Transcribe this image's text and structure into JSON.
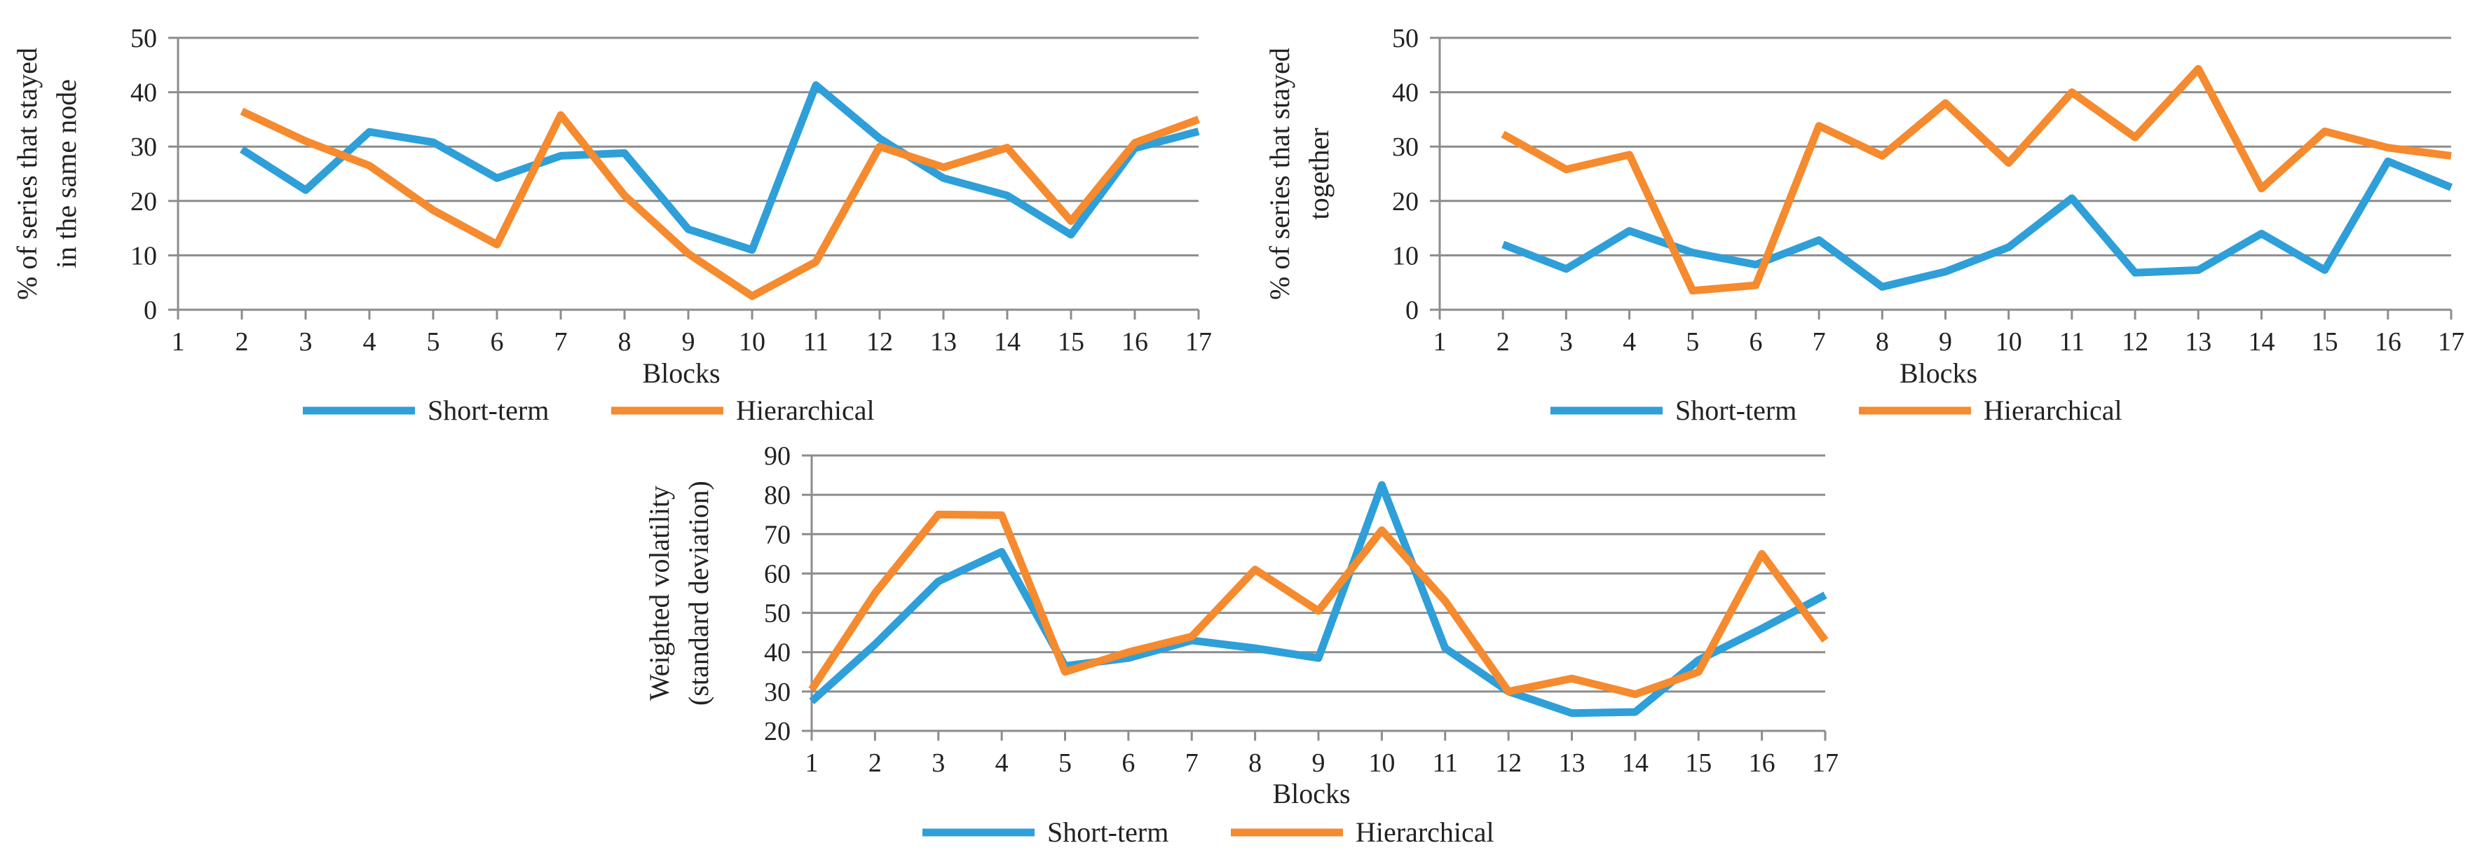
{
  "colors": {
    "short_term": "#2E9FD8",
    "hierarchical": "#F58A2E",
    "grid": "#8C8C8C",
    "axis": "#8C8C8C",
    "text": "#222222"
  },
  "chart_data": [
    {
      "type": "line",
      "id": "chart-1",
      "title": "",
      "xlabel": "Blocks",
      "ylabel": [
        "% of series that stayed",
        "in the same node"
      ],
      "x": [
        1,
        2,
        3,
        4,
        5,
        6,
        7,
        8,
        9,
        10,
        11,
        12,
        13,
        14,
        15,
        16,
        17
      ],
      "ylim": [
        0,
        50
      ],
      "yticks": [
        0,
        10,
        20,
        30,
        40,
        50
      ],
      "legend_position": "bottom",
      "series": [
        {
          "name": "Short-term",
          "x": [
            2,
            3,
            4,
            5,
            6,
            7,
            8,
            9,
            10,
            11,
            12,
            13,
            14,
            15,
            16,
            17
          ],
          "values": [
            29.5,
            22,
            32.7,
            30.8,
            24.2,
            28.3,
            28.8,
            14.8,
            11,
            41.3,
            31.5,
            24.2,
            21,
            13.8,
            29.7,
            32.8
          ]
        },
        {
          "name": "Hierarchical",
          "x": [
            2,
            3,
            4,
            5,
            6,
            7,
            8,
            9,
            10,
            11,
            12,
            13,
            14,
            15,
            16,
            17
          ],
          "values": [
            36.5,
            31,
            26.5,
            18.3,
            12,
            35.8,
            21,
            10.3,
            2.5,
            8.8,
            30,
            26.2,
            29.8,
            16.3,
            30.7,
            35
          ]
        }
      ]
    },
    {
      "type": "line",
      "id": "chart-2",
      "title": "",
      "xlabel": "Blocks",
      "ylabel": [
        "% of series that stayed",
        "together"
      ],
      "x": [
        1,
        2,
        3,
        4,
        5,
        6,
        7,
        8,
        9,
        10,
        11,
        12,
        13,
        14,
        15,
        16,
        17
      ],
      "ylim": [
        0,
        50
      ],
      "yticks": [
        0,
        10,
        20,
        30,
        40,
        50
      ],
      "legend_position": "bottom",
      "series": [
        {
          "name": "Short-term",
          "x": [
            2,
            3,
            4,
            5,
            6,
            7,
            8,
            9,
            10,
            11,
            12,
            13,
            14,
            15,
            16,
            17
          ],
          "values": [
            12,
            7.5,
            14.5,
            10.5,
            8.3,
            12.8,
            4.2,
            7,
            11.5,
            20.5,
            6.8,
            7.3,
            14,
            7.3,
            27.3,
            22.5
          ]
        },
        {
          "name": "Hierarchical",
          "x": [
            2,
            3,
            4,
            5,
            6,
            7,
            8,
            9,
            10,
            11,
            12,
            13,
            14,
            15,
            16,
            17
          ],
          "values": [
            32.3,
            25.8,
            28.5,
            3.5,
            4.5,
            33.8,
            28.3,
            38,
            27,
            40,
            31.7,
            44.3,
            22.3,
            32.8,
            29.8,
            28.3
          ]
        }
      ]
    },
    {
      "type": "line",
      "id": "chart-3",
      "title": "",
      "xlabel": "Blocks",
      "ylabel": [
        "Weighted volatility",
        "(standard deviation)"
      ],
      "x": [
        1,
        2,
        3,
        4,
        5,
        6,
        7,
        8,
        9,
        10,
        11,
        12,
        13,
        14,
        15,
        16,
        17
      ],
      "ylim": [
        20,
        90
      ],
      "yticks": [
        20,
        30,
        40,
        50,
        60,
        70,
        80,
        90
      ],
      "legend_position": "bottom",
      "series": [
        {
          "name": "Short-term",
          "x": [
            1,
            2,
            3,
            4,
            5,
            6,
            7,
            8,
            9,
            10,
            11,
            12,
            13,
            14,
            15,
            16,
            17
          ],
          "values": [
            27.5,
            42,
            58,
            65.5,
            36.5,
            38.5,
            43,
            41,
            38.5,
            82.5,
            41,
            30,
            24.5,
            24.8,
            38,
            46,
            54.5
          ]
        },
        {
          "name": "Hierarchical",
          "x": [
            1,
            2,
            3,
            4,
            5,
            6,
            7,
            8,
            9,
            10,
            11,
            12,
            13,
            14,
            15,
            16,
            17
          ],
          "values": [
            30.5,
            55,
            75,
            74.8,
            35,
            40,
            44,
            61,
            50.5,
            71,
            53,
            30,
            33.3,
            29.3,
            35,
            65,
            43
          ]
        }
      ]
    }
  ]
}
